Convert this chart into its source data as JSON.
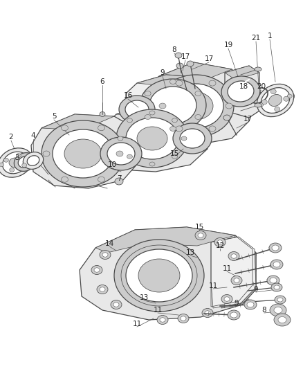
{
  "bg_color": "#ffffff",
  "line_color": "#4a4a4a",
  "fill_light": "#e8e8e8",
  "fill_mid": "#cccccc",
  "fill_dark": "#aaaaaa",
  "fill_white": "#ffffff",
  "figsize": [
    4.38,
    5.33
  ],
  "dpi": 100,
  "top_labels": [
    [
      "1",
      390,
      55
    ],
    [
      "2",
      18,
      198
    ],
    [
      "3",
      28,
      228
    ],
    [
      "4",
      50,
      198
    ],
    [
      "5",
      80,
      170
    ],
    [
      "6",
      148,
      120
    ],
    [
      "7",
      175,
      258
    ],
    [
      "8",
      258,
      75
    ],
    [
      "9",
      238,
      108
    ],
    [
      "10",
      165,
      238
    ],
    [
      "15",
      255,
      220
    ],
    [
      "16",
      188,
      140
    ],
    [
      "17",
      272,
      85
    ],
    [
      "17",
      305,
      88
    ],
    [
      "17",
      360,
      175
    ],
    [
      "18",
      355,
      128
    ],
    [
      "19",
      332,
      68
    ],
    [
      "20",
      380,
      128
    ],
    [
      "21",
      372,
      58
    ]
  ],
  "bot_labels": [
    [
      "8",
      380,
      455
    ],
    [
      "9",
      368,
      422
    ],
    [
      "9",
      338,
      440
    ],
    [
      "11",
      328,
      390
    ],
    [
      "11",
      310,
      415
    ],
    [
      "11",
      230,
      450
    ],
    [
      "11",
      200,
      468
    ],
    [
      "12",
      320,
      358
    ],
    [
      "13",
      278,
      368
    ],
    [
      "13",
      210,
      432
    ],
    [
      "14",
      162,
      355
    ],
    [
      "15",
      290,
      330
    ]
  ]
}
